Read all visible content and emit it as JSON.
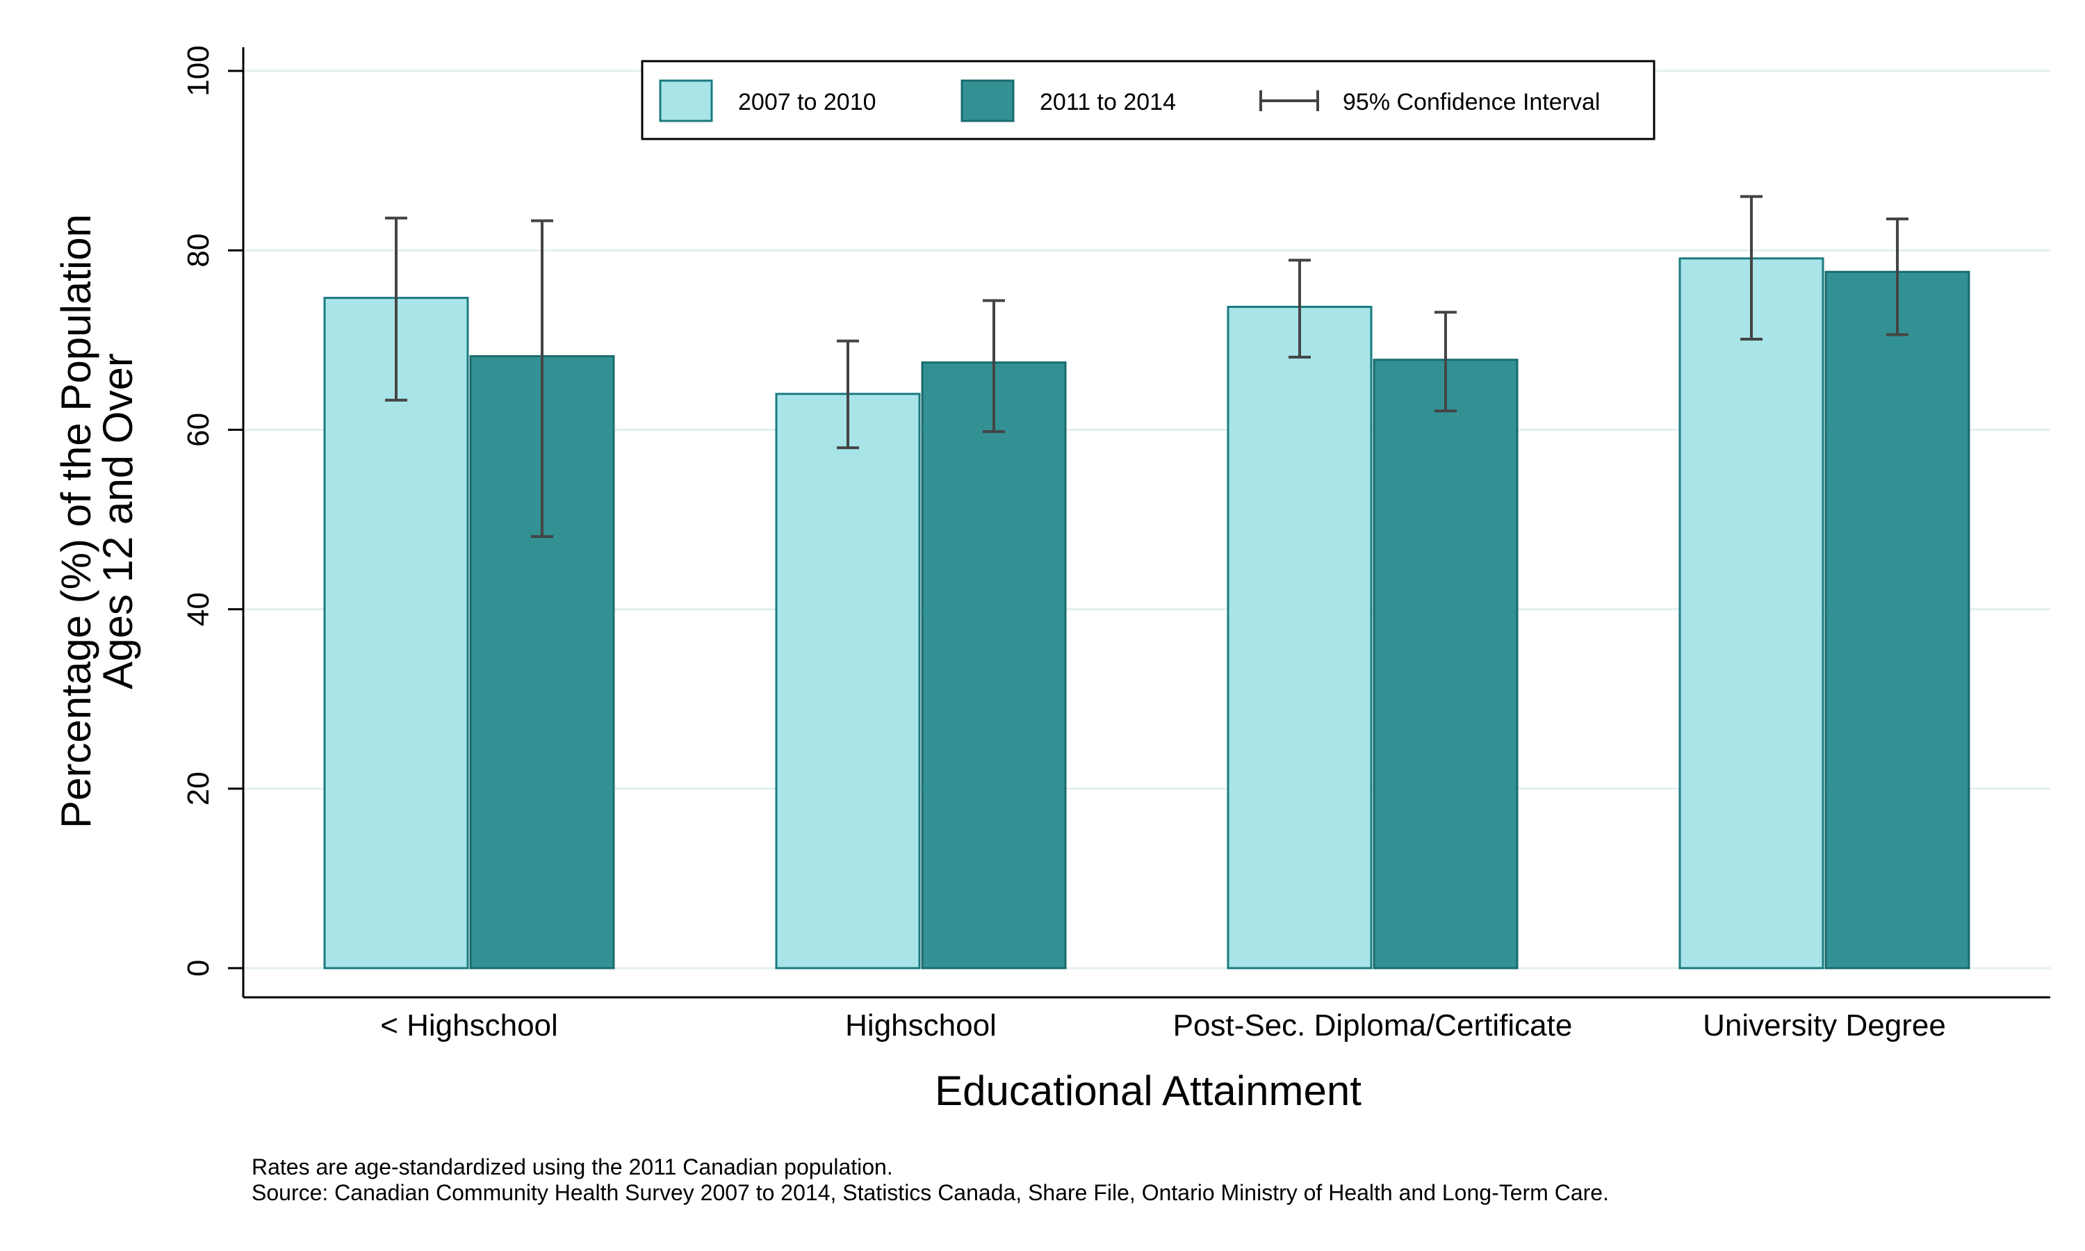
{
  "chart_data": {
    "type": "bar",
    "categories": [
      "< Highschool",
      "Highschool",
      "Post-Sec. Diploma/Certificate",
      "University Degree"
    ],
    "series": [
      {
        "name": "2007 to 2010",
        "color": "#a8e4e8",
        "values": [
          74.7,
          64.0,
          73.7,
          79.1
        ],
        "ci_low": [
          63.3,
          58.0,
          68.1,
          70.1
        ],
        "ci_high": [
          83.6,
          69.9,
          78.9,
          86.0
        ]
      },
      {
        "name": "2011 to 2014",
        "color": "#339194",
        "values": [
          68.2,
          67.5,
          67.8,
          77.6
        ],
        "ci_low": [
          48.1,
          59.8,
          62.1,
          70.6
        ],
        "ci_high": [
          83.3,
          74.4,
          73.1,
          83.5
        ]
      }
    ],
    "ci_label": "95% Confidence Interval",
    "ylabel_line1": "Percentage (%) of the Population",
    "ylabel_line2": "Ages 12 and Over",
    "xlabel": "Educational Attainment",
    "ylim": [
      0,
      100
    ],
    "yticks": [
      0,
      20,
      40,
      60,
      80,
      100
    ],
    "grid": true,
    "legend_position": "top-center",
    "notes": [
      "Rates are age-standardized using the 2011 Canadian population.",
      "Source: Canadian Community Health Survey 2007 to 2014, Statistics Canada, Share File, Ontario Ministry of Health and Long-Term Care."
    ]
  }
}
